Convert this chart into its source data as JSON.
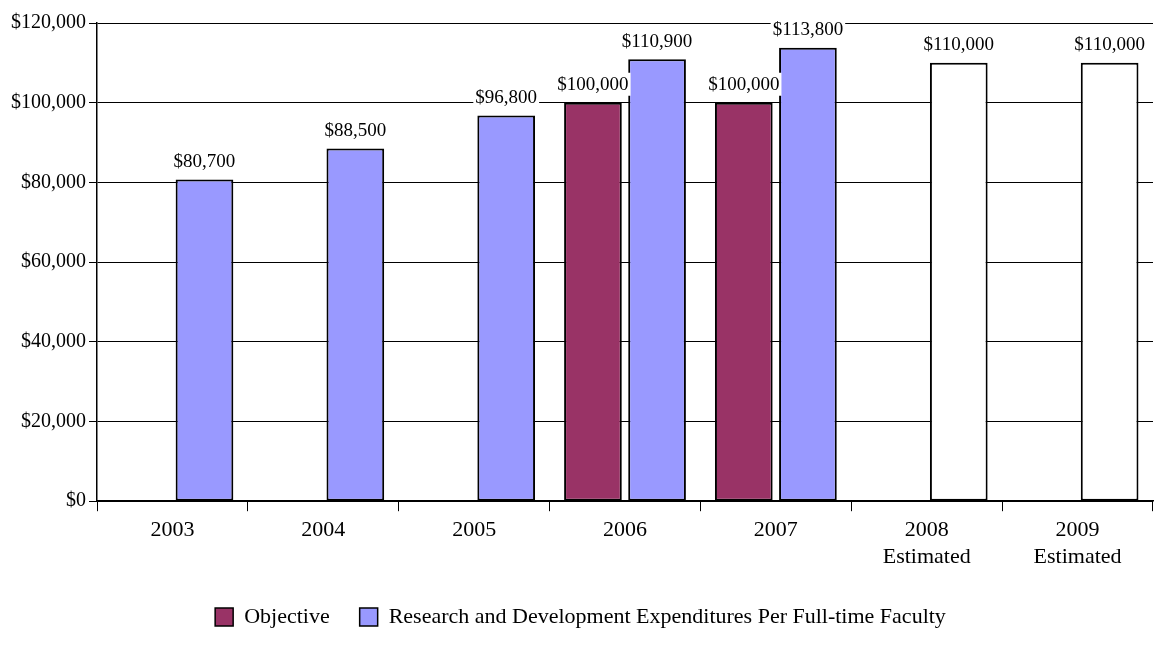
{
  "chart_data": {
    "type": "bar",
    "categories": [
      "2003",
      "2004",
      "2005",
      "2006",
      "2007",
      "2008\nEstimated",
      "2009\nEstimated"
    ],
    "series": [
      {
        "name": "Objective",
        "color": "#993366",
        "values": [
          null,
          null,
          null,
          100000,
          100000,
          null,
          null
        ],
        "value_labels": [
          null,
          null,
          null,
          "$100,000",
          "$100,000",
          null,
          null
        ]
      },
      {
        "name": "Research and Development Expenditures Per Full-time Faculty",
        "color": "#9999ff",
        "colors": [
          "#9999ff",
          "#9999ff",
          "#9999ff",
          "#9999ff",
          "#9999ff",
          "#ffffff",
          "#ffffff"
        ],
        "values": [
          80700,
          88500,
          96800,
          110900,
          113800,
          110000,
          110000
        ],
        "value_labels": [
          "$80,700",
          "$88,500",
          "$96,800",
          "$110,900",
          "$113,800",
          "$110,000",
          "$110,000"
        ]
      }
    ],
    "ylim": [
      0,
      120000
    ],
    "yticks": [
      {
        "value": 0,
        "label": "$0"
      },
      {
        "value": 20000,
        "label": "$20,000"
      },
      {
        "value": 40000,
        "label": "$40,000"
      },
      {
        "value": 60000,
        "label": "$60,000"
      },
      {
        "value": 80000,
        "label": "$80,000"
      },
      {
        "value": 100000,
        "label": "$100,000"
      },
      {
        "value": 120000,
        "label": "$120,000"
      }
    ],
    "grid": "y",
    "legend": "bottom"
  }
}
